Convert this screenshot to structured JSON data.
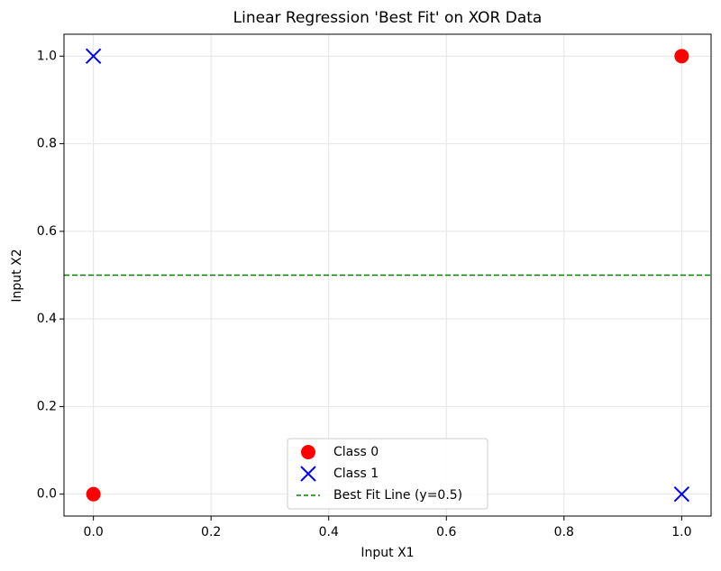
{
  "chart_data": {
    "type": "scatter",
    "title": "Linear Regression 'Best Fit' on XOR Data",
    "x_label": "Input X1",
    "y_label": "Input X2",
    "xlim": [
      -0.05,
      1.05
    ],
    "ylim": [
      -0.05,
      1.05
    ],
    "xticks": [
      {
        "value": 0,
        "label": "0.0"
      },
      0.2,
      0.4,
      0.6,
      0.8,
      {
        "value": 1,
        "label": "1.0"
      }
    ],
    "yticks": [
      {
        "value": 0,
        "label": "0.0"
      },
      0.2,
      0.4,
      0.6,
      0.8,
      {
        "value": 1,
        "label": "1.0"
      }
    ],
    "grid": true,
    "legend": "lower center",
    "series": [
      {
        "name": "Class 0",
        "color": "#ff0000",
        "marker": "circle",
        "x": [
          0,
          1
        ],
        "values": [
          0,
          1
        ]
      },
      {
        "name": "Class 1",
        "color": "#0000ff",
        "marker": "x",
        "x": [
          0,
          1
        ],
        "values": [
          1,
          0
        ]
      },
      {
        "name": "Best Fit Line (y=0.5)",
        "color": "#008000",
        "marker": "hline",
        "line_style": "dashed",
        "values": [
          0.5
        ]
      }
    ]
  }
}
